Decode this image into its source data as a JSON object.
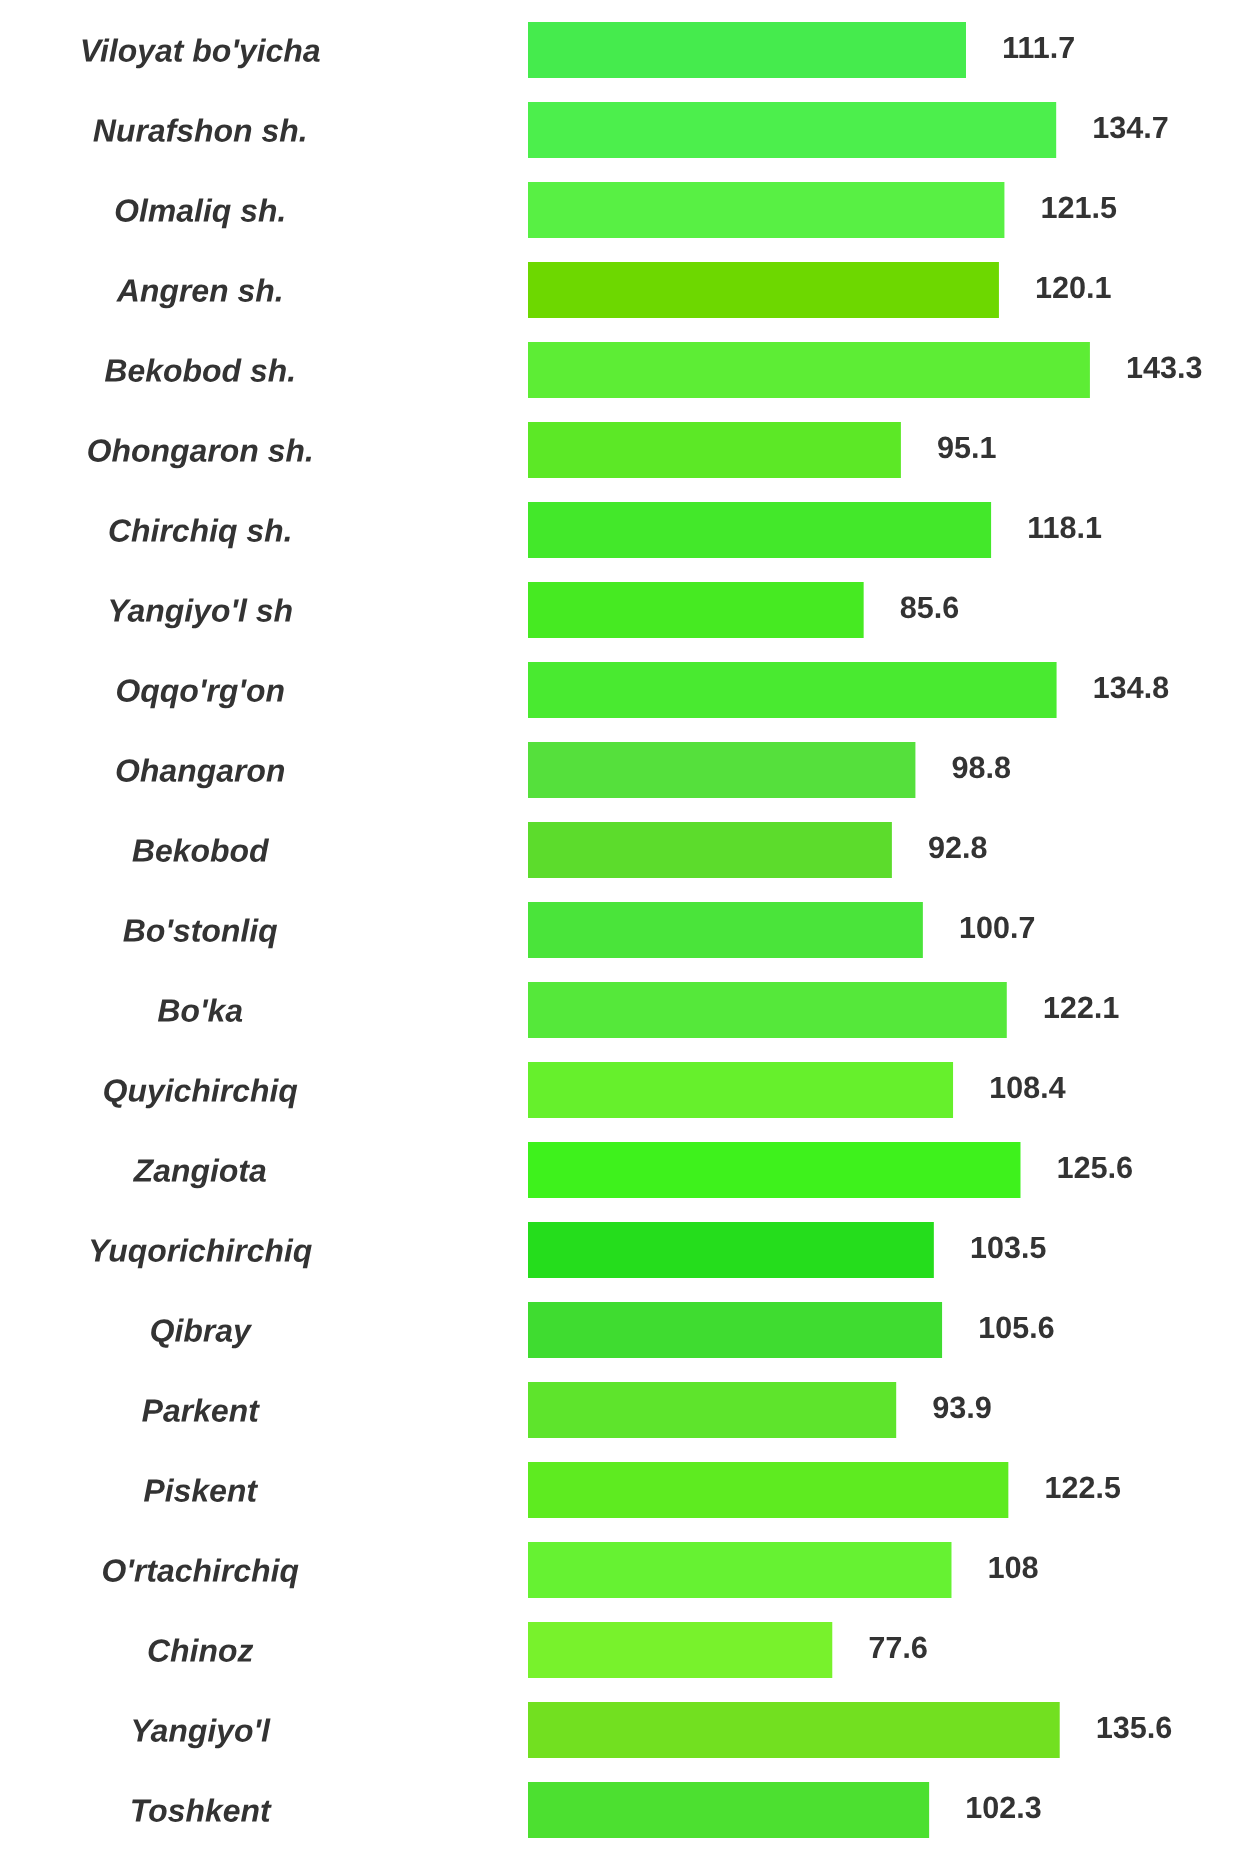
{
  "chart_data": {
    "type": "bar",
    "orientation": "horizontal",
    "categories": [
      "Viloyat bo'yicha",
      "Nurafshon sh.",
      "Olmaliq sh.",
      "Angren sh.",
      "Bekobod sh.",
      "Ohongaron sh.",
      "Chirchiq sh.",
      "Yangiyo'l sh",
      "Oqqo'rg'on",
      "Ohangaron",
      "Bekobod",
      "Bo'stonliq",
      "Bo'ka",
      "Quyichirchiq",
      "Zangiota",
      "Yuqorichirchiq",
      "Qibray",
      "Parkent",
      "Piskent",
      "O'rtachirchiq",
      "Chinoz",
      "Yangiyo'l",
      "Toshkent"
    ],
    "values": [
      111.7,
      134.7,
      121.5,
      120.1,
      143.3,
      95.1,
      118.1,
      85.6,
      134.8,
      98.8,
      92.8,
      100.7,
      122.1,
      108.4,
      125.6,
      103.5,
      105.6,
      93.9,
      122.5,
      108,
      77.6,
      135.6,
      102.3
    ],
    "colors": [
      "#45eb4d",
      "#4cef4c",
      "#58f044",
      "#6dd800",
      "#5ded35",
      "#5ce826",
      "#43e82a",
      "#46ea22",
      "#49ea30",
      "#55e03c",
      "#5cdc2c",
      "#4ae43a",
      "#55e83a",
      "#66f02c",
      "#3ef21c",
      "#25dd1c",
      "#3fdc30",
      "#5ee42c",
      "#5eeb20",
      "#66f232",
      "#78f22c",
      "#72e020",
      "#4ce030"
    ],
    "data_labels": true,
    "tick_labels": "y"
  }
}
